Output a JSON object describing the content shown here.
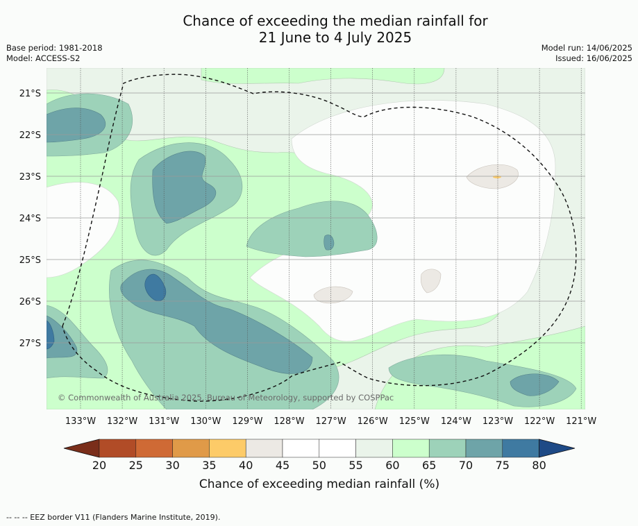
{
  "title_line1": "Chance of exceeding the median rainfall for",
  "title_line2": "21 June to 4 July 2025",
  "base_period": "Base period: 1981-2018",
  "model": "Model: ACCESS-S2",
  "model_run": "Model run: 14/06/2025",
  "issued": "Issued: 16/06/2025",
  "copyright": "© Commonwealth of Australia 2025, Bureau of Meteorology, supported by COSPPac",
  "lon_labels": [
    "133°W",
    "132°W",
    "131°W",
    "130°W",
    "129°W",
    "128°W",
    "127°W",
    "126°W",
    "125°W",
    "124°W",
    "123°W",
    "122°W",
    "121°W"
  ],
  "lat_labels": [
    "21°S",
    "22°S",
    "23°S",
    "24°S",
    "25°S",
    "26°S",
    "27°S"
  ],
  "colorbar": {
    "label": "Chance of exceeding median rainfall (%)",
    "ticks": [
      "20",
      "25",
      "30",
      "35",
      "40",
      "45",
      "50",
      "55",
      "60",
      "65",
      "70",
      "75",
      "80"
    ],
    "colors": [
      "#7a2e1a",
      "#b14c27",
      "#cf6a35",
      "#e09a48",
      "#fdcb68",
      "#ece9e4",
      "#ffffff",
      "#ffffff",
      "#eaf4ea",
      "#ccffcc",
      "#9dd2b9",
      "#6ea4a8",
      "#3f7aa1",
      "#1e4a86"
    ]
  },
  "footer_legend": "--  --  -- EEZ border V11 (Flanders Marine Institute, 2019)."
}
